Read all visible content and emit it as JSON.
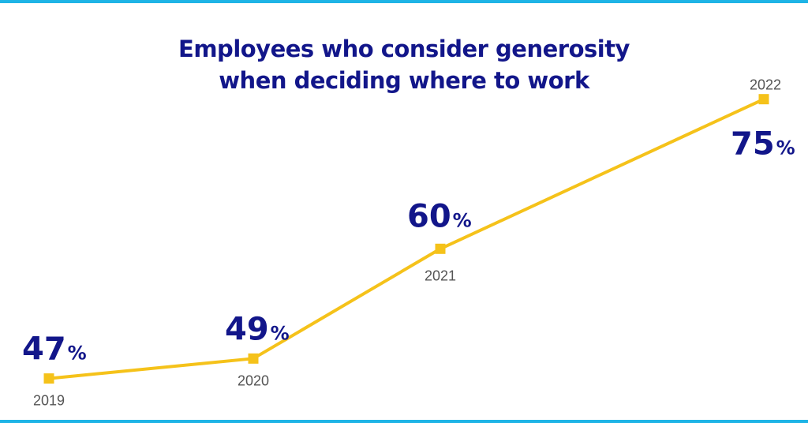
{
  "colors": {
    "rule": "#1eb4e6",
    "title": "#12168a",
    "line": "#f5c21a",
    "value_label": "#12168a",
    "year_label": "#555555"
  },
  "chart_data": {
    "type": "line",
    "title": [
      "Employees who consider generosity",
      "when deciding where to work"
    ],
    "xlabel": "",
    "ylabel": "",
    "grid": false,
    "categories": [
      "2019",
      "2020",
      "2021",
      "2022"
    ],
    "values": [
      47,
      49,
      60,
      75
    ],
    "unit": "%"
  }
}
